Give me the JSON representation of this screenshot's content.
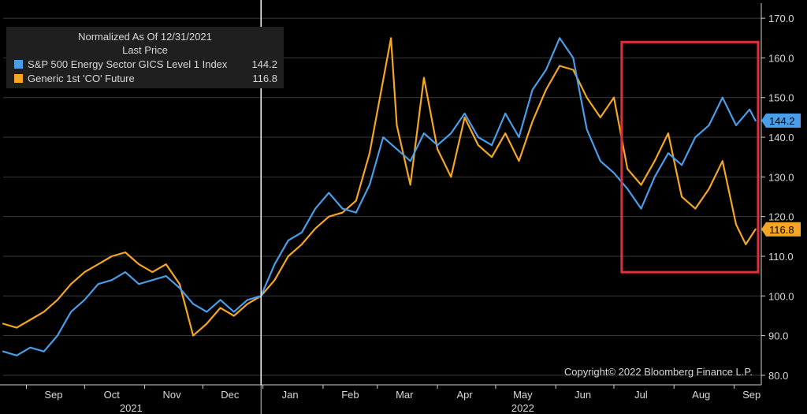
{
  "legend": {
    "header_line1": "Normalized As Of 12/31/2021",
    "header_line2": "Last Price"
  },
  "copyright": "Copyright© 2022 Bloomberg Finance L.P.",
  "colors": {
    "energy_series": "#4a9de8",
    "brent_series": "#f5a623",
    "highlight_box": "#e0303c",
    "background": "#000000",
    "grid": "#3a3a3a",
    "marker_line": "#ffffff"
  },
  "chart_data": {
    "type": "line",
    "title": "",
    "xlabel": "",
    "ylabel": "",
    "ylim": [
      78,
      173
    ],
    "y_ticks": [
      "80.0",
      "90.0",
      "100.0",
      "110.0",
      "120.0",
      "130.0",
      "140.0",
      "150.0",
      "160.0",
      "170.0"
    ],
    "y_axis_side": "right",
    "grid": true,
    "legend_position": "top-left",
    "x_start": "2021-08-20",
    "x_end": "2022-09-15",
    "months": [
      {
        "label": "Sep",
        "date": "2021-09-15"
      },
      {
        "label": "Oct",
        "date": "2021-10-15"
      },
      {
        "label": "Nov",
        "date": "2021-11-15"
      },
      {
        "label": "Dec",
        "date": "2021-12-15"
      },
      {
        "label": "Jan",
        "date": "2022-01-15"
      },
      {
        "label": "Feb",
        "date": "2022-02-15"
      },
      {
        "label": "Mar",
        "date": "2022-03-15"
      },
      {
        "label": "Apr",
        "date": "2022-04-15"
      },
      {
        "label": "May",
        "date": "2022-05-15"
      },
      {
        "label": "Jun",
        "date": "2022-06-15"
      },
      {
        "label": "Jul",
        "date": "2022-07-15"
      },
      {
        "label": "Aug",
        "date": "2022-08-15"
      },
      {
        "label": "Sep",
        "date": "2022-09-10"
      }
    ],
    "years": [
      {
        "label": "2021",
        "date": "2021-10-25"
      },
      {
        "label": "2022",
        "date": "2022-05-15"
      }
    ],
    "year_boundary": "2021-12-31",
    "highlight_region": {
      "x_start": "2022-07-05",
      "x_end": "2022-09-15",
      "y_low": 106,
      "y_high": 164
    },
    "series": [
      {
        "name": "S&P 500 Energy Sector GICS Level 1 Index",
        "last_value": "144.2",
        "points": [
          [
            "2021-08-20",
            86
          ],
          [
            "2021-08-27",
            85
          ],
          [
            "2021-09-03",
            87
          ],
          [
            "2021-09-10",
            86
          ],
          [
            "2021-09-17",
            90
          ],
          [
            "2021-09-24",
            96
          ],
          [
            "2021-10-01",
            99
          ],
          [
            "2021-10-08",
            103
          ],
          [
            "2021-10-15",
            104
          ],
          [
            "2021-10-22",
            106
          ],
          [
            "2021-10-29",
            103
          ],
          [
            "2021-11-05",
            104
          ],
          [
            "2021-11-12",
            105
          ],
          [
            "2021-11-19",
            102
          ],
          [
            "2021-11-26",
            98
          ],
          [
            "2021-12-03",
            96
          ],
          [
            "2021-12-10",
            99
          ],
          [
            "2021-12-17",
            96
          ],
          [
            "2021-12-24",
            99
          ],
          [
            "2021-12-31",
            100
          ],
          [
            "2022-01-07",
            108
          ],
          [
            "2022-01-14",
            114
          ],
          [
            "2022-01-21",
            116
          ],
          [
            "2022-01-28",
            122
          ],
          [
            "2022-02-04",
            126
          ],
          [
            "2022-02-11",
            122
          ],
          [
            "2022-02-18",
            121
          ],
          [
            "2022-02-25",
            128
          ],
          [
            "2022-03-04",
            140
          ],
          [
            "2022-03-11",
            137
          ],
          [
            "2022-03-18",
            134
          ],
          [
            "2022-03-25",
            141
          ],
          [
            "2022-04-01",
            138
          ],
          [
            "2022-04-08",
            141
          ],
          [
            "2022-04-15",
            146
          ],
          [
            "2022-04-22",
            140
          ],
          [
            "2022-04-29",
            138
          ],
          [
            "2022-05-06",
            146
          ],
          [
            "2022-05-13",
            140
          ],
          [
            "2022-05-20",
            152
          ],
          [
            "2022-05-27",
            157
          ],
          [
            "2022-06-03",
            165
          ],
          [
            "2022-06-10",
            160
          ],
          [
            "2022-06-17",
            142
          ],
          [
            "2022-06-24",
            134
          ],
          [
            "2022-07-01",
            131
          ],
          [
            "2022-07-08",
            127
          ],
          [
            "2022-07-15",
            122
          ],
          [
            "2022-07-22",
            130
          ],
          [
            "2022-07-29",
            136
          ],
          [
            "2022-08-05",
            133
          ],
          [
            "2022-08-12",
            140
          ],
          [
            "2022-08-19",
            143
          ],
          [
            "2022-08-26",
            150
          ],
          [
            "2022-09-02",
            143
          ],
          [
            "2022-09-09",
            147
          ],
          [
            "2022-09-12",
            144.2
          ]
        ]
      },
      {
        "name": "Generic 1st 'CO' Future",
        "last_value": "116.8",
        "points": [
          [
            "2021-08-20",
            93
          ],
          [
            "2021-08-27",
            92
          ],
          [
            "2021-09-03",
            94
          ],
          [
            "2021-09-10",
            96
          ],
          [
            "2021-09-17",
            99
          ],
          [
            "2021-09-24",
            103
          ],
          [
            "2021-10-01",
            106
          ],
          [
            "2021-10-08",
            108
          ],
          [
            "2021-10-15",
            110
          ],
          [
            "2021-10-22",
            111
          ],
          [
            "2021-10-29",
            108
          ],
          [
            "2021-11-05",
            106
          ],
          [
            "2021-11-12",
            108
          ],
          [
            "2021-11-19",
            103
          ],
          [
            "2021-11-26",
            90
          ],
          [
            "2021-12-03",
            93
          ],
          [
            "2021-12-10",
            97
          ],
          [
            "2021-12-17",
            95
          ],
          [
            "2021-12-24",
            98
          ],
          [
            "2021-12-31",
            100
          ],
          [
            "2022-01-07",
            104
          ],
          [
            "2022-01-14",
            110
          ],
          [
            "2022-01-21",
            113
          ],
          [
            "2022-01-28",
            117
          ],
          [
            "2022-02-04",
            120
          ],
          [
            "2022-02-11",
            121
          ],
          [
            "2022-02-18",
            124
          ],
          [
            "2022-02-25",
            136
          ],
          [
            "2022-03-08",
            165
          ],
          [
            "2022-03-11",
            143
          ],
          [
            "2022-03-18",
            128
          ],
          [
            "2022-03-25",
            155
          ],
          [
            "2022-04-01",
            137
          ],
          [
            "2022-04-08",
            130
          ],
          [
            "2022-04-15",
            145
          ],
          [
            "2022-04-22",
            138
          ],
          [
            "2022-04-29",
            135
          ],
          [
            "2022-05-06",
            141
          ],
          [
            "2022-05-13",
            134
          ],
          [
            "2022-05-20",
            144
          ],
          [
            "2022-05-27",
            152
          ],
          [
            "2022-06-03",
            158
          ],
          [
            "2022-06-10",
            157
          ],
          [
            "2022-06-17",
            150
          ],
          [
            "2022-06-24",
            145
          ],
          [
            "2022-07-01",
            150
          ],
          [
            "2022-07-08",
            132
          ],
          [
            "2022-07-15",
            128
          ],
          [
            "2022-07-22",
            134
          ],
          [
            "2022-07-29",
            141
          ],
          [
            "2022-08-05",
            125
          ],
          [
            "2022-08-12",
            122
          ],
          [
            "2022-08-19",
            127
          ],
          [
            "2022-08-26",
            134
          ],
          [
            "2022-09-02",
            118
          ],
          [
            "2022-09-07",
            113
          ],
          [
            "2022-09-12",
            116.8
          ]
        ]
      }
    ]
  }
}
